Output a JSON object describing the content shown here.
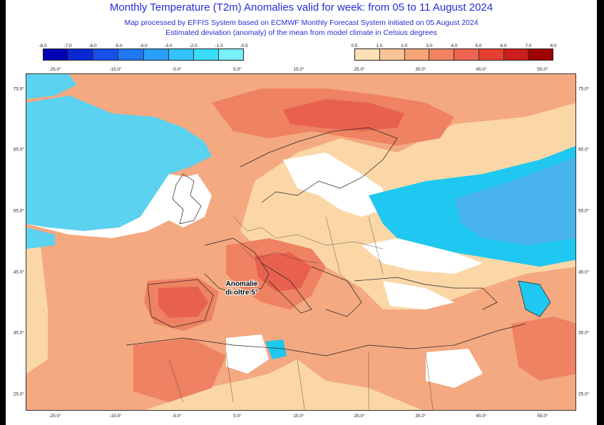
{
  "header": {
    "title": "Monthly Temperature (T2m) Anomalies valid for week: from 05 to 11 August 2024",
    "line1": "Map processed by EFFIS System based on ECMWF Monthly Forecast System initiated on 05 August 2024",
    "line2": "Estimated deviation (anomaly) of the mean from model climate in Celsius degrees"
  },
  "colorbar": {
    "negative_labels": [
      "-8.0",
      "-7.0",
      "-6.0",
      "-5.0",
      "-4.0",
      "-3.0",
      "-2.0",
      "-1.0",
      "-0.5"
    ],
    "negative_colors": [
      "#0000b4",
      "#0a28d2",
      "#1450e6",
      "#1e78f0",
      "#28a0fa",
      "#32c3ff",
      "#3cdcff",
      "#78f0ff"
    ],
    "positive_labels": [
      "0.5",
      "1.0",
      "2.0",
      "3.0",
      "4.0",
      "5.0",
      "6.0",
      "7.0",
      "8.0"
    ],
    "positive_colors": [
      "#fde0b4",
      "#fbc496",
      "#f6a478",
      "#f28260",
      "#ee6450",
      "#e64032",
      "#cd1e1e",
      "#a00000"
    ]
  },
  "axes": {
    "lon_labels": [
      "-25.0°",
      "-15.0°",
      "-5.0°",
      "5.0°",
      "15.0°",
      "25.0°",
      "35.0°",
      "45.0°",
      "55.0°"
    ],
    "lat_labels": [
      "75.0°",
      "65.0°",
      "55.0°",
      "45.0°",
      "35.0°",
      "25.0°"
    ]
  },
  "colors": {
    "sea": "#5ad2f0",
    "land_white": "#ffffff",
    "anomaly_light": "#fbd7a8",
    "anomaly_medium": "#f4a980",
    "anomaly_strong": "#ee8262",
    "anomaly_hot": "#e8604e",
    "cold_blue": "#1ec8f0",
    "cold_deep": "#4ab4ee"
  },
  "annotation": {
    "line1": "Anomalie",
    "line2": "di oltre 5°"
  }
}
